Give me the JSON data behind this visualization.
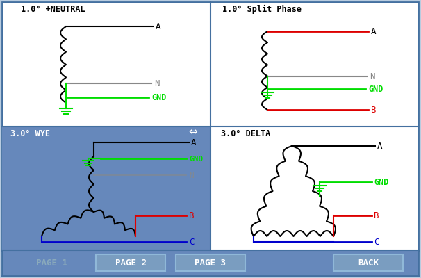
{
  "bg_color": "#b8cce0",
  "panel_bg": "#ffffff",
  "wye_bg": "#6688bb",
  "footer_bg": "#6688bb",
  "border_color": "#4470a0",
  "black": "#000000",
  "green": "#00dd00",
  "gray": "#888888",
  "red": "#dd0000",
  "blue": "#0000cc",
  "title_top_left": "1.0° +NEUTRAL",
  "title_top_right": "1.0° Split Phase",
  "title_bot_left": "3.0° WYE",
  "title_bot_right": "3.0° DELTA",
  "footer_buttons": [
    "PAGE 1",
    "PAGE 2",
    "PAGE 3",
    "BACK"
  ]
}
